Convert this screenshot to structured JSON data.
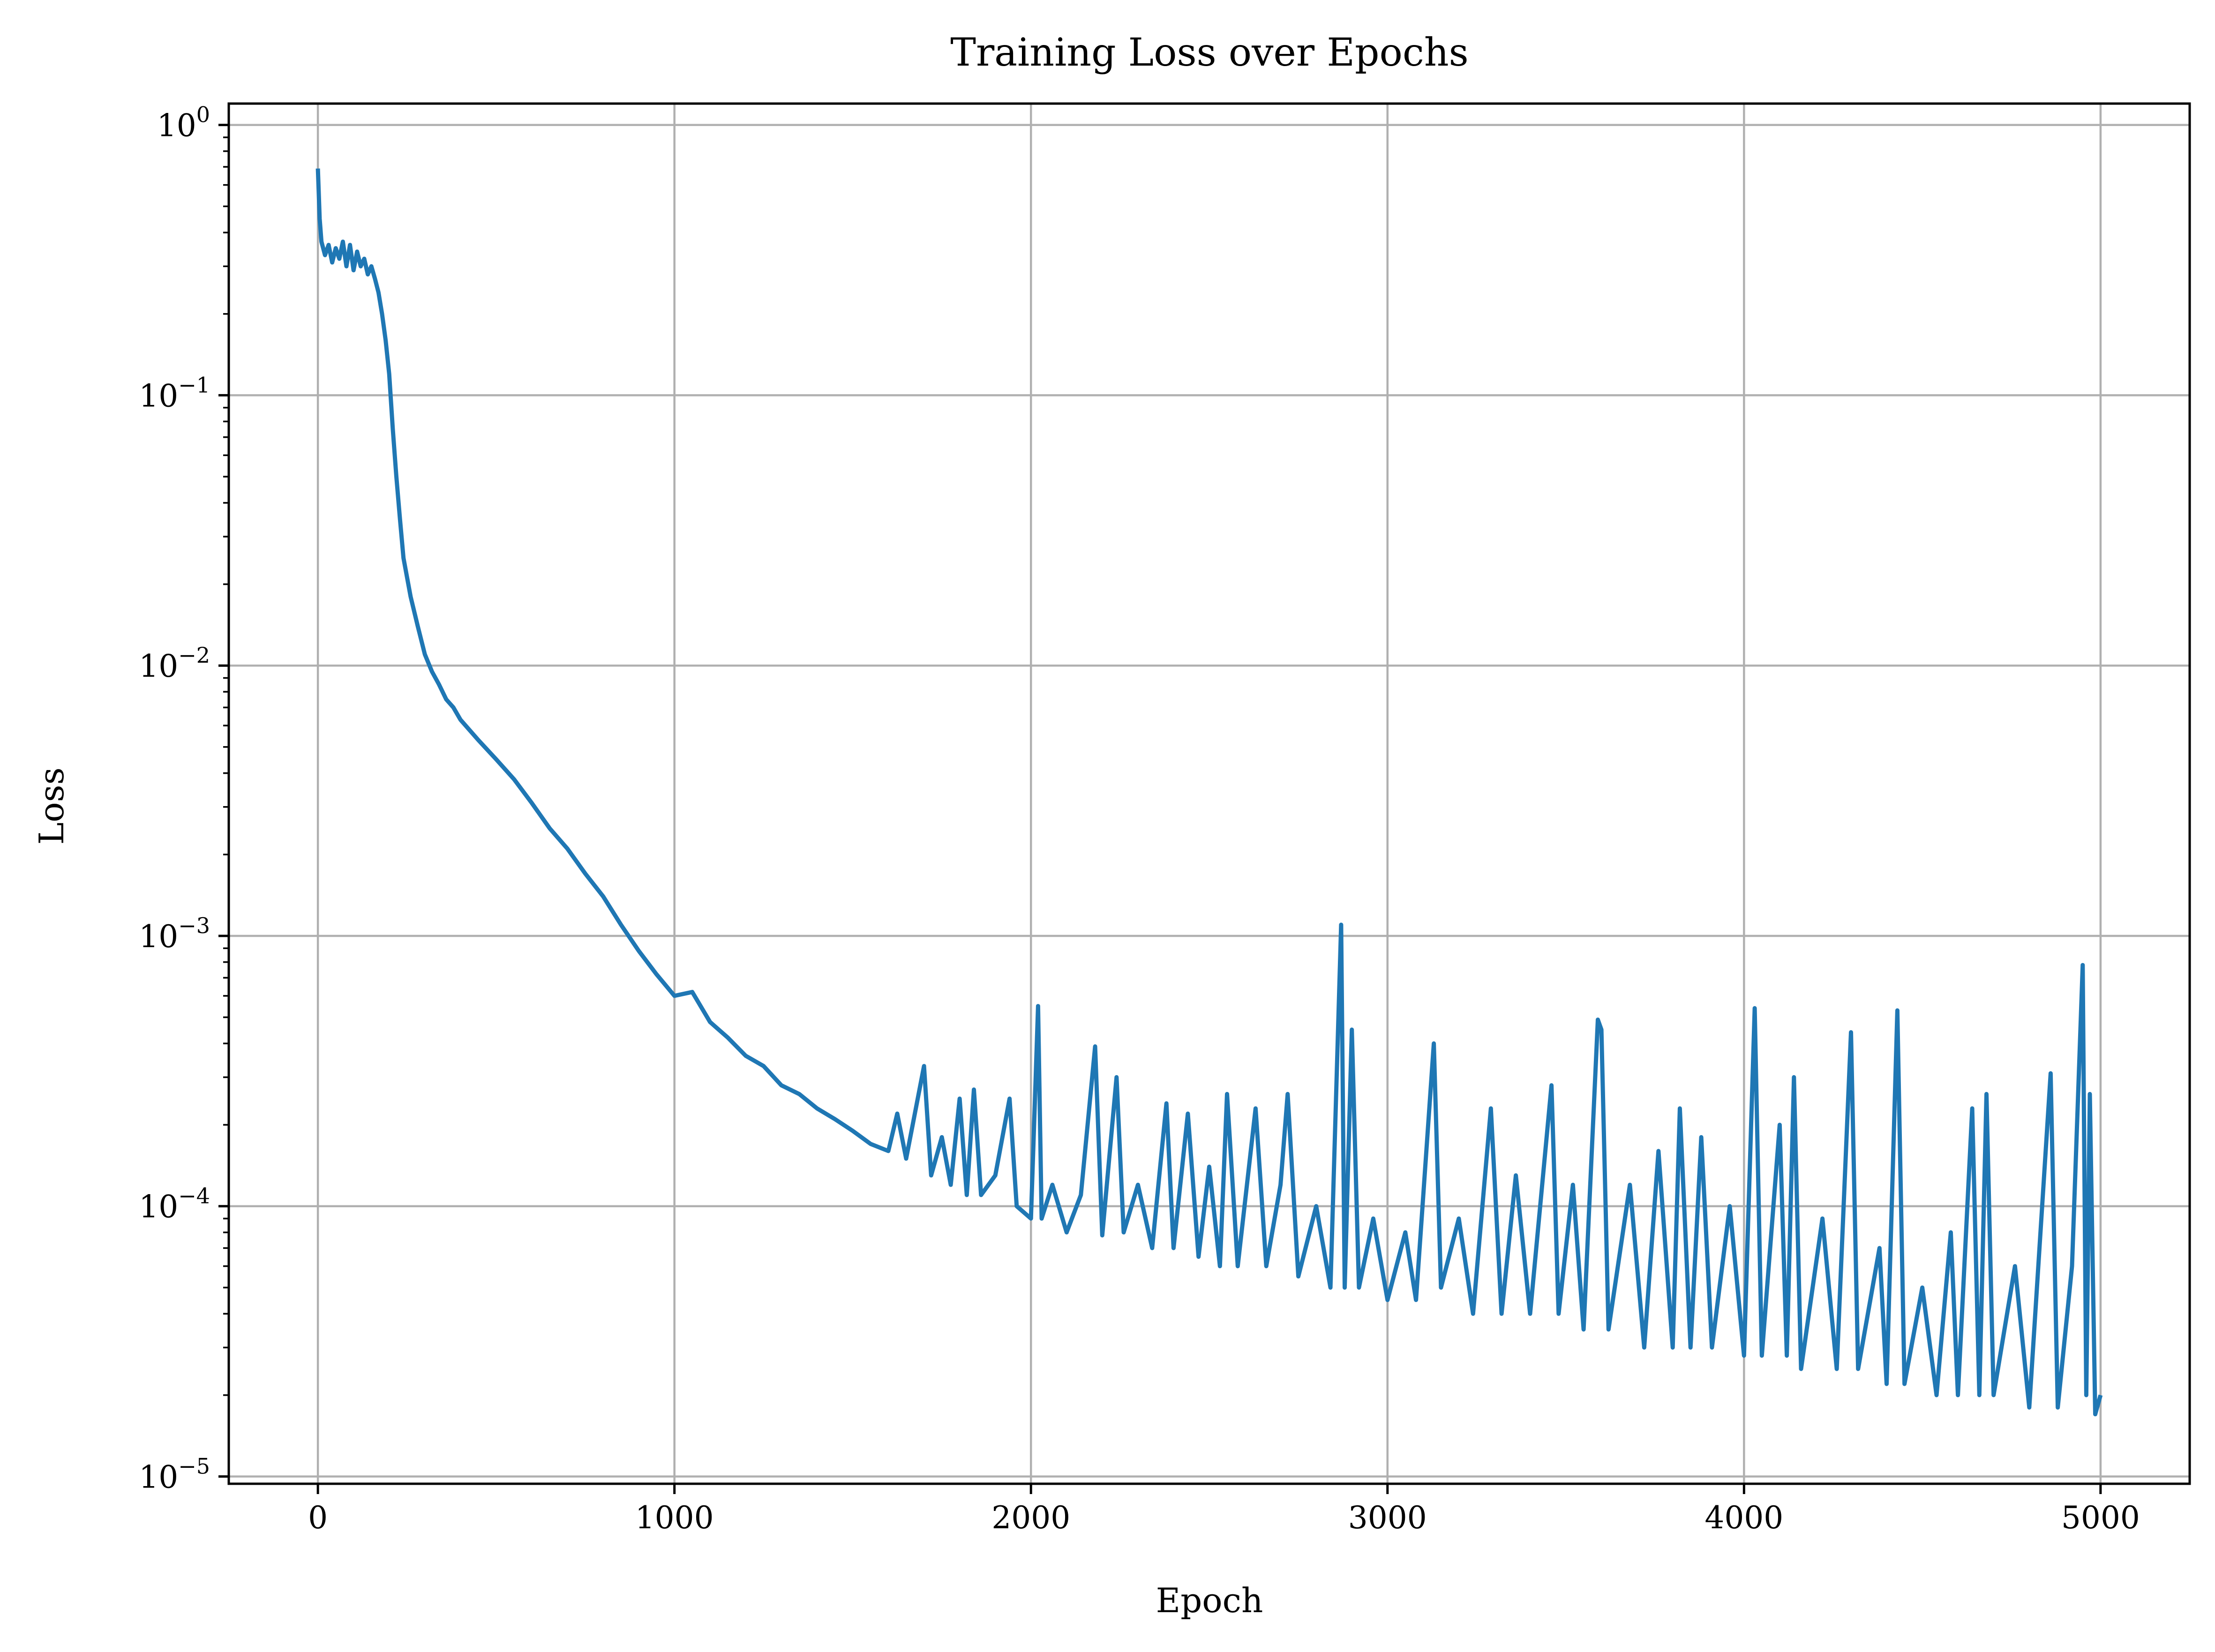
{
  "chart_data": {
    "type": "line",
    "title": "Training Loss over Epochs",
    "xlabel": "Epoch",
    "ylabel": "Loss",
    "xlim": [
      -250,
      5250
    ],
    "ylim": [
      9.4e-06,
      1.2
    ],
    "yscale": "log",
    "grid": true,
    "line_color": "#1f77b4",
    "grid_color": "#b0b0b0",
    "x_ticks": [
      0,
      1000,
      2000,
      3000,
      4000,
      5000
    ],
    "x_tick_labels": [
      "0",
      "1000",
      "2000",
      "3000",
      "4000",
      "5000"
    ],
    "y_ticks": [
      1,
      0.1,
      0.01,
      0.001,
      0.0001,
      1e-05
    ],
    "y_tick_labels": [
      {
        "base": "10",
        "exp": "0"
      },
      {
        "base": "10",
        "exp": "−1"
      },
      {
        "base": "10",
        "exp": "−2"
      },
      {
        "base": "10",
        "exp": "−3"
      },
      {
        "base": "10",
        "exp": "−4"
      },
      {
        "base": "10",
        "exp": "−5"
      }
    ],
    "series": [
      {
        "x": [
          0,
          5,
          10,
          20,
          30,
          40,
          50,
          60,
          70,
          80,
          90,
          100,
          110,
          120,
          130,
          140,
          150,
          160,
          170,
          180,
          190,
          200,
          210,
          220,
          230,
          240,
          260,
          280,
          300,
          320,
          340,
          360,
          380,
          400,
          450,
          500,
          550,
          600,
          650,
          700,
          750,
          800,
          850,
          900,
          950,
          1000,
          1050,
          1100,
          1150,
          1200,
          1250,
          1300,
          1350,
          1400,
          1450,
          1500,
          1550,
          1600,
          1625,
          1650,
          1700,
          1720,
          1750,
          1775,
          1800,
          1820,
          1840,
          1860,
          1900,
          1940,
          1960,
          2000,
          2020,
          2030,
          2060,
          2100,
          2140,
          2180,
          2200,
          2240,
          2260,
          2300,
          2340,
          2380,
          2400,
          2440,
          2470,
          2500,
          2530,
          2550,
          2580,
          2630,
          2660,
          2700,
          2720,
          2750,
          2800,
          2840,
          2870,
          2880,
          2900,
          2920,
          2960,
          3000,
          3050,
          3080,
          3130,
          3150,
          3200,
          3240,
          3290,
          3320,
          3360,
          3400,
          3460,
          3480,
          3520,
          3550,
          3590,
          3600,
          3620,
          3680,
          3720,
          3760,
          3800,
          3820,
          3850,
          3880,
          3910,
          3960,
          4000,
          4030,
          4050,
          4100,
          4120,
          4140,
          4160,
          4220,
          4260,
          4300,
          4320,
          4380,
          4400,
          4430,
          4450,
          4500,
          4540,
          4580,
          4600,
          4640,
          4660,
          4680,
          4700,
          4760,
          4800,
          4840,
          4860,
          4880,
          4920,
          4950,
          4960,
          4970,
          4985,
          5000
        ],
        "y": [
          0.69,
          0.45,
          0.37,
          0.33,
          0.36,
          0.31,
          0.35,
          0.32,
          0.37,
          0.3,
          0.36,
          0.29,
          0.34,
          0.3,
          0.32,
          0.28,
          0.3,
          0.27,
          0.24,
          0.2,
          0.16,
          0.12,
          0.075,
          0.05,
          0.035,
          0.025,
          0.018,
          0.014,
          0.011,
          0.0095,
          0.0085,
          0.0075,
          0.007,
          0.0063,
          0.0053,
          0.0045,
          0.0038,
          0.0031,
          0.0025,
          0.0021,
          0.0017,
          0.0014,
          0.0011,
          0.00088,
          0.00072,
          0.0006,
          0.00062,
          0.00048,
          0.00042,
          0.00036,
          0.00033,
          0.00028,
          0.00026,
          0.00023,
          0.00021,
          0.00019,
          0.00017,
          0.00016,
          0.00022,
          0.00015,
          0.00033,
          0.00013,
          0.00018,
          0.00012,
          0.00025,
          0.00011,
          0.00027,
          0.00011,
          0.00013,
          0.00025,
          0.0001,
          9e-05,
          0.00055,
          9e-05,
          0.00012,
          8e-05,
          0.00011,
          0.00039,
          7.8e-05,
          0.0003,
          8e-05,
          0.00012,
          7e-05,
          0.00024,
          7e-05,
          0.00022,
          6.5e-05,
          0.00014,
          6e-05,
          0.00026,
          6e-05,
          0.00023,
          6e-05,
          0.00012,
          0.00026,
          5.5e-05,
          0.0001,
          5e-05,
          0.0011,
          5e-05,
          0.00045,
          5e-05,
          9e-05,
          4.5e-05,
          8e-05,
          4.5e-05,
          0.0004,
          5e-05,
          9e-05,
          4e-05,
          0.00023,
          4e-05,
          0.00013,
          4e-05,
          0.00028,
          4e-05,
          0.00012,
          3.5e-05,
          0.00049,
          0.00045,
          3.5e-05,
          0.00012,
          3e-05,
          0.00016,
          3e-05,
          0.00023,
          3e-05,
          0.00018,
          3e-05,
          0.0001,
          2.8e-05,
          0.00054,
          2.8e-05,
          0.0002,
          2.8e-05,
          0.0003,
          2.5e-05,
          9e-05,
          2.5e-05,
          0.00044,
          2.5e-05,
          7e-05,
          2.2e-05,
          0.00053,
          2.2e-05,
          5e-05,
          2e-05,
          8e-05,
          2e-05,
          0.00023,
          2e-05,
          0.00026,
          2e-05,
          6e-05,
          1.8e-05,
          0.00012,
          0.00031,
          1.8e-05,
          6e-05,
          0.00078,
          2e-05,
          0.00026,
          1.7e-05,
          2e-05
        ]
      }
    ]
  }
}
